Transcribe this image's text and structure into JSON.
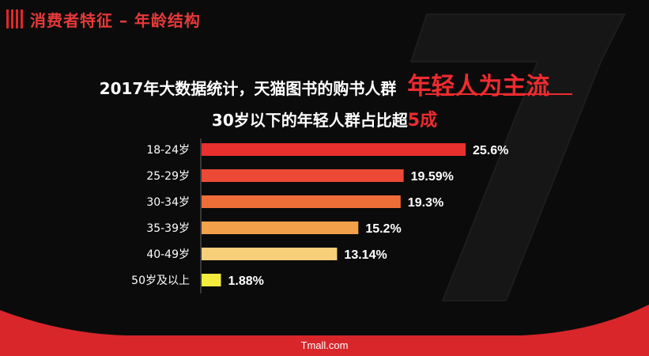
{
  "section_title": "消费者特征 – 年龄结构",
  "headline": {
    "main": "2017年大数据统计，天猫图书的购书人群",
    "accent": "年轻人为主流"
  },
  "subline": {
    "main": "30岁以下的年轻人群占比超",
    "accent": "5成"
  },
  "footer": "Tmall.com",
  "colors": {
    "accent": "#e2262b",
    "background": "#0b0b0b"
  },
  "chart_data": {
    "type": "bar",
    "orientation": "horizontal",
    "categories": [
      "18-24岁",
      "25-29岁",
      "30-34岁",
      "35-39岁",
      "40-49岁",
      "50岁及以上"
    ],
    "values": [
      25.6,
      19.59,
      19.3,
      15.2,
      13.14,
      1.88
    ],
    "labels": [
      "25.6%",
      "19.59%",
      "19.3%",
      "15.2%",
      "13.14%",
      "1.88%"
    ],
    "bar_colors": [
      "#e8302e",
      "#ec4a35",
      "#ef6e37",
      "#f2a04a",
      "#f6cf78",
      "#f3ec3c"
    ],
    "xlim": [
      0,
      25.6
    ]
  }
}
